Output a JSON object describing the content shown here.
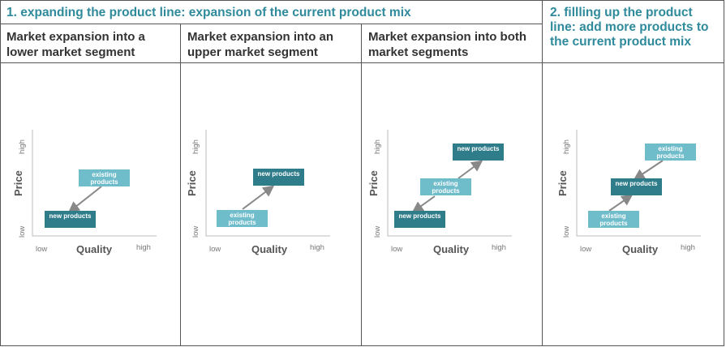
{
  "header": {
    "expanding": "1. expanding the product line: expansion of the current product mix",
    "filling": "2. fillling up the product line: add more products to the current product mix"
  },
  "columns": [
    {
      "title": "Market expansion into a lower market segment"
    },
    {
      "title": "Market expansion into an upper market segment"
    },
    {
      "title": "Market expansion into both market segments"
    }
  ],
  "axes": {
    "y_title": "Price",
    "x_title": "Quality",
    "low": "low",
    "high": "high"
  },
  "labels": {
    "existing": "existing products",
    "new": "new products"
  },
  "colors": {
    "heading": "#2f8a9b",
    "new_box": "#2f7c8a",
    "existing_box": "#6fbccb",
    "arrow": "#888888"
  }
}
